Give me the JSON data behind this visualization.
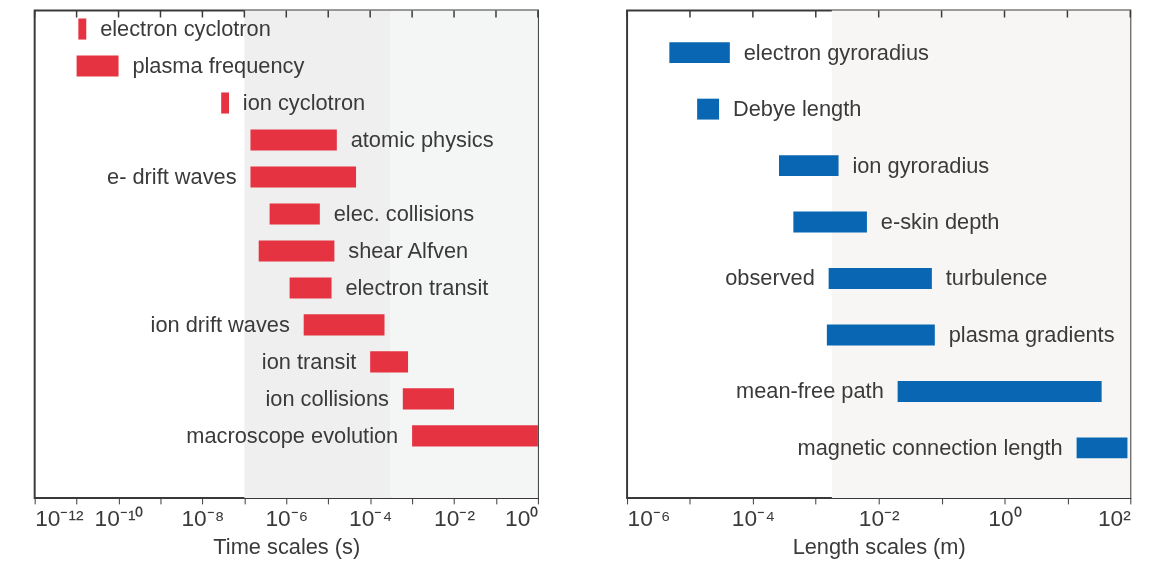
{
  "chart_data": [
    {
      "type": "bar",
      "orientation": "horizontal",
      "xlabel": "Time scales (s)",
      "log": "x",
      "color": "#e63341",
      "categories": [
        "electron cyclotron",
        "plasma frequency",
        "ion cyclotron",
        "atomic physics",
        "e-  drift waves",
        "elec.  collisions",
        "shear Alfven",
        "electron transit",
        "ion drift waves",
        "ion transit",
        "ion collisions",
        "macroscope evolution"
      ],
      "base": [
        1.1e-11,
        1e-11,
        2.8e-08,
        1.4e-07,
        1.4e-07,
        4e-07,
        2.2e-07,
        1.2e-06,
        2.6e-06,
        0.0001,
        0.0006,
        0.001
      ],
      "values": [
        6e-12,
        9e-11,
        1.5e-08,
        1.59e-05,
        4.59e-05,
        5.9e-06,
        1.38e-05,
        1.08e-05,
        0.000217,
        0.0007,
        0.0094,
        0.999
      ],
      "xlim": [
        1e-12,
        1
      ],
      "xticks": [
        {
          "value": 1e-12,
          "label": "10⁻¹²"
        },
        {
          "value": 1e-11,
          "label": null
        },
        {
          "value": 1e-10,
          "label": "10⁻¹⁰"
        },
        {
          "value": 1e-09,
          "label": null
        },
        {
          "value": 1e-08,
          "label": "10⁻⁸"
        },
        {
          "value": 1e-07,
          "label": null
        },
        {
          "value": 1e-06,
          "label": "10⁻⁶"
        },
        {
          "value": 1e-05,
          "label": null
        },
        {
          "value": 0.0001,
          "label": "10⁻⁴"
        },
        {
          "value": 0.001,
          "label": null
        },
        {
          "value": 0.01,
          "label": "10⁻²"
        },
        {
          "value": 0.1,
          "label": null
        },
        {
          "value": 1,
          "label": "10⁰"
        }
      ],
      "bands": [
        {
          "axis": "x",
          "from": 1e-07,
          "to": 0.0003,
          "color": "#efefef"
        },
        {
          "axis": "x",
          "from": 0.0003,
          "to": 1,
          "color": "#f4f5f5"
        }
      ]
    },
    {
      "type": "bar",
      "orientation": "horizontal",
      "xlabel": "Length scales (m)",
      "log": "x",
      "color": "#0866b2",
      "categories": [
        "electron gyroradius",
        "Debye length",
        "ion gyroradius",
        "e-skin depth",
        "observed turbulence",
        "plasma gradients",
        "mean-free path",
        "magnetic connection length"
      ],
      "base": [
        4.7e-06,
        1.3e-05,
        0.00026,
        0.00044,
        0.0016,
        0.0015,
        0.02,
        14
      ],
      "values": [
        3.83e-05,
        1.6e-05,
        0.00204,
        0.00606,
        0.0684,
        0.0765,
        34.98,
        76
      ],
      "xlim": [
        1e-06,
        100
      ],
      "xticks": [
        {
          "value": 1e-06,
          "label": "10⁻⁶"
        },
        {
          "value": 1e-05,
          "label": null
        },
        {
          "value": 0.0001,
          "label": "10⁻⁴"
        },
        {
          "value": 0.001,
          "label": null
        },
        {
          "value": 0.01,
          "label": "10⁻²"
        },
        {
          "value": 0.1,
          "label": null
        },
        {
          "value": 1,
          "label": "10⁰"
        },
        {
          "value": 10,
          "label": null
        },
        {
          "value": 100,
          "label": "10²"
        }
      ],
      "bands": [
        {
          "axis": "x",
          "from": 0.0018,
          "to": 100,
          "color": "#f7f6f4"
        }
      ]
    }
  ]
}
